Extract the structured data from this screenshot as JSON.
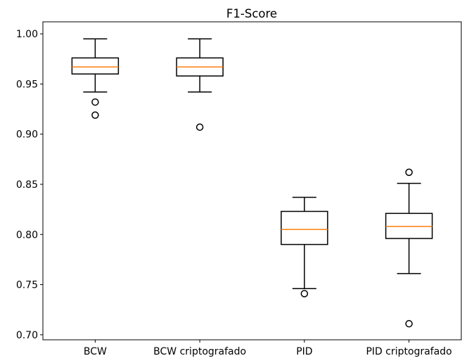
{
  "chart_data": {
    "type": "boxplot",
    "title": "F1-Score",
    "xlabel": "",
    "ylabel": "",
    "ylim": [
      0.695,
      1.012
    ],
    "yticks": [
      0.7,
      0.75,
      0.8,
      0.85,
      0.9,
      0.95,
      1.0
    ],
    "ytick_labels": [
      "0.70",
      "0.75",
      "0.80",
      "0.85",
      "0.90",
      "0.95",
      "1.00"
    ],
    "grid": false,
    "categories": [
      "BCW",
      "BCW criptografado",
      "PID",
      "PID criptografado"
    ],
    "boxes": [
      {
        "category": "BCW",
        "whisker_low": 0.942,
        "q1": 0.96,
        "median": 0.967,
        "q3": 0.976,
        "whisker_high": 0.995,
        "outliers": [
          0.932,
          0.919
        ]
      },
      {
        "category": "BCW criptografado",
        "whisker_low": 0.942,
        "q1": 0.958,
        "median": 0.967,
        "q3": 0.976,
        "whisker_high": 0.995,
        "outliers": [
          0.907
        ]
      },
      {
        "category": "PID",
        "whisker_low": 0.746,
        "q1": 0.79,
        "median": 0.805,
        "q3": 0.823,
        "whisker_high": 0.837,
        "outliers": [
          0.741
        ]
      },
      {
        "category": "PID criptografado",
        "whisker_low": 0.761,
        "q1": 0.796,
        "median": 0.808,
        "q3": 0.821,
        "whisker_high": 0.851,
        "outliers": [
          0.862,
          0.711
        ]
      }
    ],
    "colors": {
      "box": "#000000",
      "median": "#ff7f0e",
      "outlier": "#000000",
      "background": "#ffffff"
    }
  }
}
